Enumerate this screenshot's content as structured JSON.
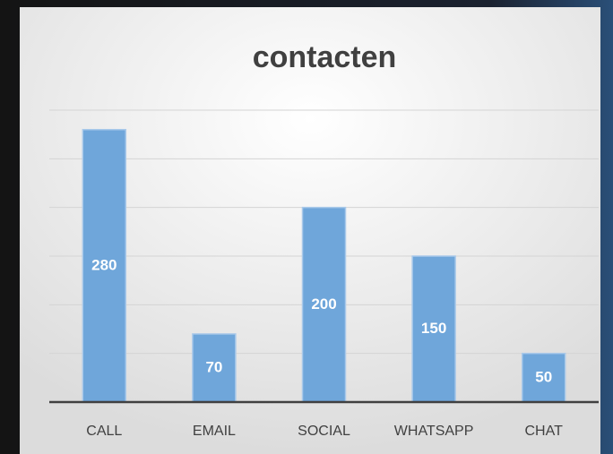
{
  "chart_data": {
    "type": "bar",
    "title": "contacten",
    "categories": [
      "CALL",
      "EMAIL",
      "SOCIAL",
      "WHATSAPP",
      "CHAT"
    ],
    "values": [
      280,
      70,
      200,
      150,
      50
    ],
    "color": "#6fa6da",
    "ylim": [
      0,
      300
    ],
    "yticks": [
      0,
      50,
      100,
      150,
      200,
      250,
      300
    ],
    "grid": true
  }
}
